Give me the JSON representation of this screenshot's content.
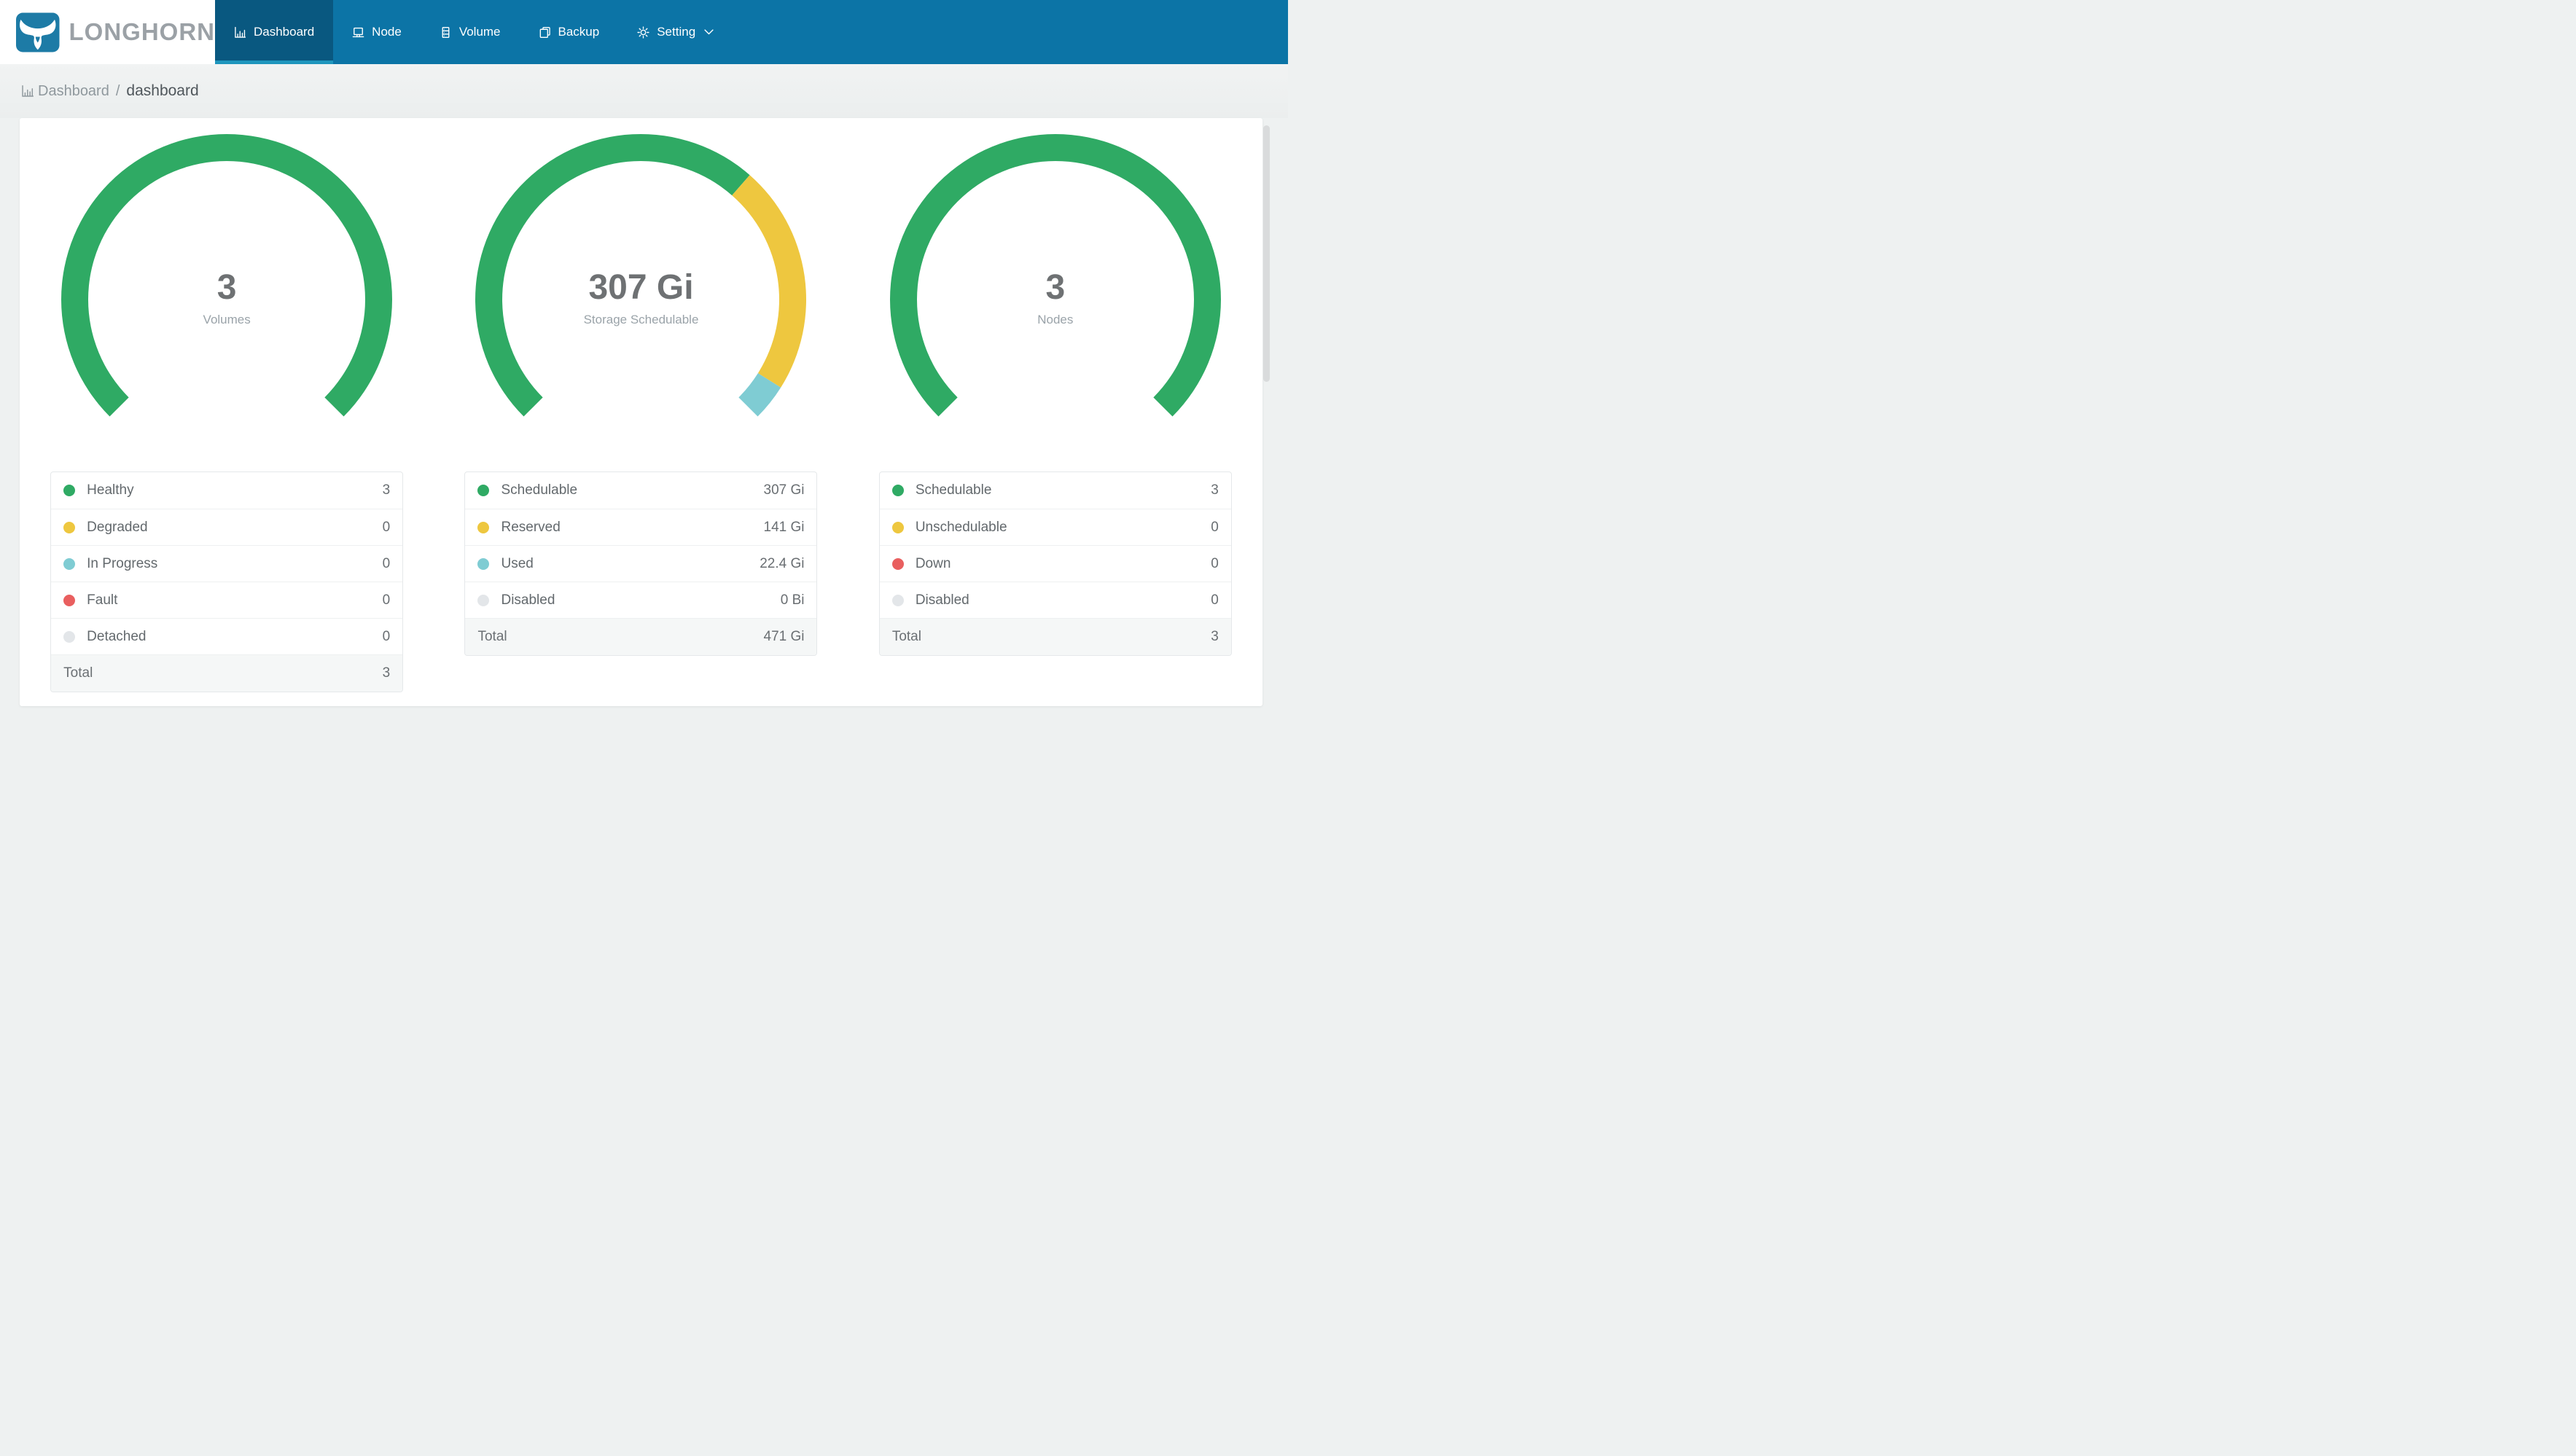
{
  "nav": {
    "brand": "LONGHORN",
    "items": [
      {
        "label": "Dashboard",
        "icon": "bar-chart-icon",
        "active": true
      },
      {
        "label": "Node",
        "icon": "laptop-icon",
        "active": false
      },
      {
        "label": "Volume",
        "icon": "database-icon",
        "active": false
      },
      {
        "label": "Backup",
        "icon": "copy-icon",
        "active": false
      },
      {
        "label": "Setting",
        "icon": "gear-icon",
        "active": false,
        "has_dropdown": true
      }
    ]
  },
  "breadcrumb": {
    "icon": "bar-chart-icon",
    "section": "Dashboard",
    "separator": "/",
    "page": "dashboard"
  },
  "colors": {
    "nav_blue": "#0c74a6",
    "nav_active_blue": "#095880",
    "nav_active_underline": "#1f96bd",
    "healthy_green": "#2faa64",
    "warning_yellow": "#eec73f",
    "progress_teal": "#7fccd3",
    "fault_red": "#e95f5f",
    "disabled_gray": "#e3e6e9"
  },
  "chart_data": [
    {
      "type": "gauge-donut",
      "center_value": "3",
      "center_label": "Volumes",
      "arc": {
        "start_deg": 135,
        "sweep_deg": 270
      },
      "rows": [
        {
          "label": "Healthy",
          "display": "3",
          "amount": 3,
          "color": "#2faa64"
        },
        {
          "label": "Degraded",
          "display": "0",
          "amount": 0,
          "color": "#eec73f"
        },
        {
          "label": "In Progress",
          "display": "0",
          "amount": 0,
          "color": "#7fccd3"
        },
        {
          "label": "Fault",
          "display": "0",
          "amount": 0,
          "color": "#e95f5f"
        },
        {
          "label": "Detached",
          "display": "0",
          "amount": 0,
          "color": "#e3e6e9"
        }
      ],
      "total_label": "Total",
      "total_value": "3"
    },
    {
      "type": "gauge-donut",
      "center_value": "307 Gi",
      "center_label": "Storage Schedulable",
      "arc": {
        "start_deg": 135,
        "sweep_deg": 270
      },
      "rows": [
        {
          "label": "Schedulable",
          "display": "307 Gi",
          "amount": 307,
          "color": "#2faa64"
        },
        {
          "label": "Reserved",
          "display": "141 Gi",
          "amount": 141,
          "color": "#eec73f"
        },
        {
          "label": "Used",
          "display": "22.4 Gi",
          "amount": 22.4,
          "color": "#7fccd3"
        },
        {
          "label": "Disabled",
          "display": "0 Bi",
          "amount": 0,
          "color": "#e3e6e9"
        }
      ],
      "total_label": "Total",
      "total_value": "471 Gi"
    },
    {
      "type": "gauge-donut",
      "center_value": "3",
      "center_label": "Nodes",
      "arc": {
        "start_deg": 135,
        "sweep_deg": 270
      },
      "rows": [
        {
          "label": "Schedulable",
          "display": "3",
          "amount": 3,
          "color": "#2faa64"
        },
        {
          "label": "Unschedulable",
          "display": "0",
          "amount": 0,
          "color": "#eec73f"
        },
        {
          "label": "Down",
          "display": "0",
          "amount": 0,
          "color": "#e95f5f"
        },
        {
          "label": "Disabled",
          "display": "0",
          "amount": 0,
          "color": "#e3e6e9"
        }
      ],
      "total_label": "Total",
      "total_value": "3"
    }
  ]
}
